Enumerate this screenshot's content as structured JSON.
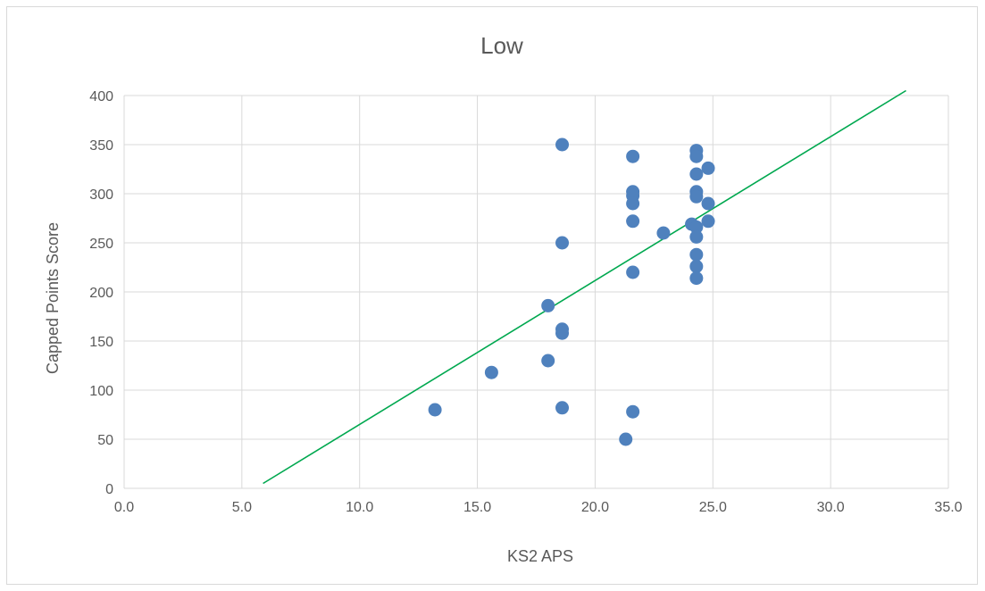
{
  "chart_data": {
    "type": "scatter",
    "title": "Low",
    "xlabel": "KS2 APS",
    "ylabel": "Capped Points Score",
    "xlim": [
      0,
      35
    ],
    "ylim": [
      0,
      400
    ],
    "x_ticks": [
      "0.0",
      "5.0",
      "10.0",
      "15.0",
      "20.0",
      "25.0",
      "30.0",
      "35.0"
    ],
    "y_ticks": [
      "0",
      "50",
      "100",
      "150",
      "200",
      "250",
      "300",
      "350",
      "400"
    ],
    "grid": true,
    "legend": "none",
    "point_color": "#4f81bd",
    "trendline_color": "#00a84f",
    "trendline": {
      "x": [
        5.9,
        33.2
      ],
      "y": [
        5,
        405
      ]
    },
    "points": [
      {
        "x": 13.2,
        "y": 80
      },
      {
        "x": 15.6,
        "y": 118
      },
      {
        "x": 18.0,
        "y": 186
      },
      {
        "x": 18.0,
        "y": 130
      },
      {
        "x": 18.6,
        "y": 350
      },
      {
        "x": 18.6,
        "y": 250
      },
      {
        "x": 18.6,
        "y": 162
      },
      {
        "x": 18.6,
        "y": 158
      },
      {
        "x": 18.6,
        "y": 82
      },
      {
        "x": 21.3,
        "y": 50
      },
      {
        "x": 21.6,
        "y": 338
      },
      {
        "x": 21.6,
        "y": 302
      },
      {
        "x": 21.6,
        "y": 298
      },
      {
        "x": 21.6,
        "y": 290
      },
      {
        "x": 21.6,
        "y": 272
      },
      {
        "x": 21.6,
        "y": 220
      },
      {
        "x": 21.6,
        "y": 78
      },
      {
        "x": 22.9,
        "y": 260
      },
      {
        "x": 24.1,
        "y": 269
      },
      {
        "x": 24.3,
        "y": 344
      },
      {
        "x": 24.3,
        "y": 338
      },
      {
        "x": 24.3,
        "y": 320
      },
      {
        "x": 24.3,
        "y": 302
      },
      {
        "x": 24.3,
        "y": 297
      },
      {
        "x": 24.3,
        "y": 266
      },
      {
        "x": 24.3,
        "y": 256
      },
      {
        "x": 24.3,
        "y": 238
      },
      {
        "x": 24.3,
        "y": 226
      },
      {
        "x": 24.3,
        "y": 214
      },
      {
        "x": 24.8,
        "y": 326
      },
      {
        "x": 24.8,
        "y": 290
      },
      {
        "x": 24.8,
        "y": 272
      }
    ]
  }
}
